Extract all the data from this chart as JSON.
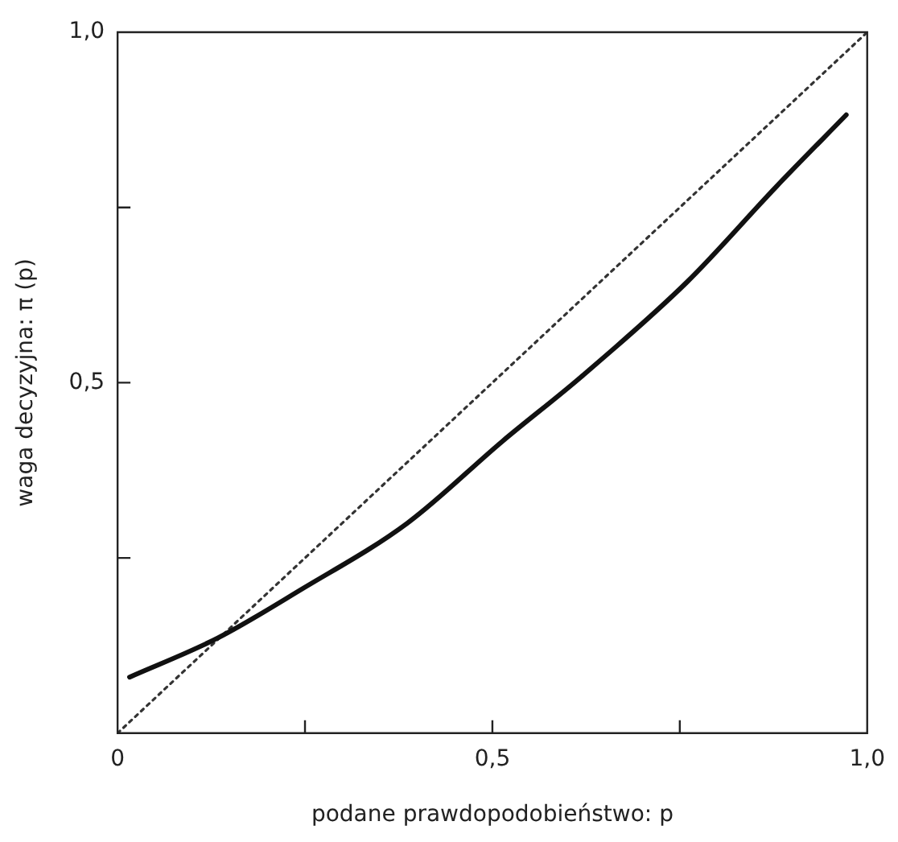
{
  "chart_data": {
    "type": "line",
    "xlabel": "podane prawdopodobieństwo: p",
    "ylabel": "waga decyzyjna: π (p)",
    "xlim": [
      0,
      1
    ],
    "ylim": [
      0,
      1
    ],
    "xticks": [
      {
        "value": 0,
        "label": "0"
      },
      {
        "value": 0.25,
        "label": null
      },
      {
        "value": 0.5,
        "label": "0,5"
      },
      {
        "value": 0.75,
        "label": null
      },
      {
        "value": 1,
        "label": "1,0"
      }
    ],
    "yticks": [
      {
        "value": 0.25,
        "label": null
      },
      {
        "value": 0.5,
        "label": "0,5"
      },
      {
        "value": 0.75,
        "label": null
      },
      {
        "value": 1,
        "label": "1,0"
      }
    ],
    "grid": false,
    "legend": false,
    "marker": "none",
    "series": [
      {
        "color": "#111111",
        "line_style": "solid",
        "x": [
          0.016,
          0.134,
          0.245,
          0.387,
          0.514,
          0.618,
          0.76,
          0.879,
          0.972
        ],
        "values": [
          0.08,
          0.136,
          0.205,
          0.3,
          0.417,
          0.508,
          0.644,
          0.78,
          0.882
        ]
      },
      {
        "color": "#333333",
        "line_style": "dotted",
        "x": [
          0,
          1
        ],
        "values": [
          0,
          1
        ]
      }
    ]
  }
}
